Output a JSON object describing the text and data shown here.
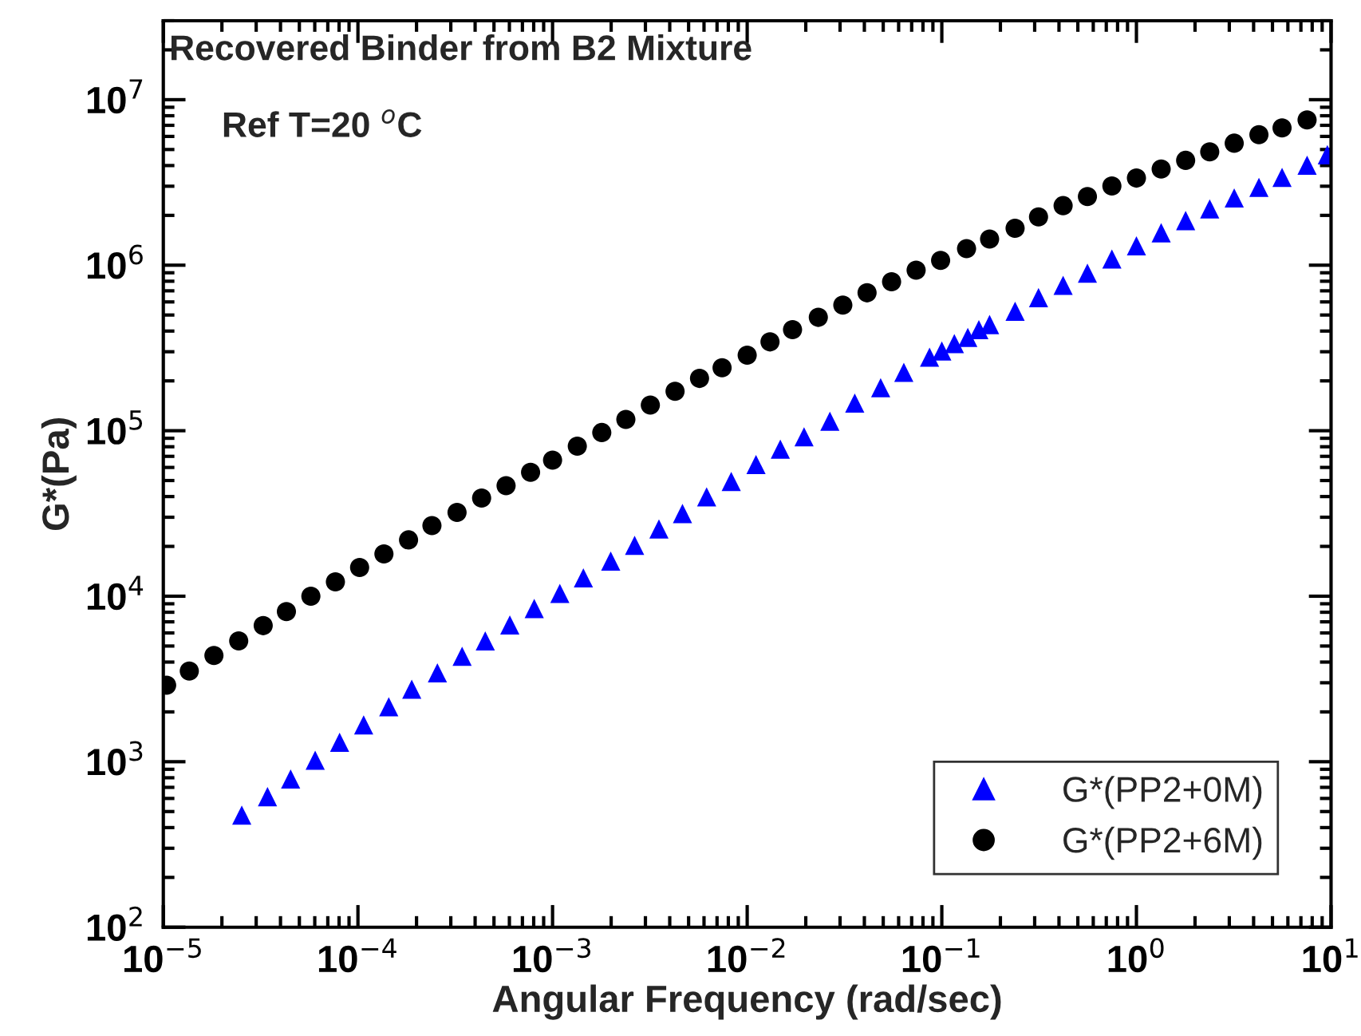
{
  "chart_data": {
    "type": "scatter",
    "xlabel": "Angular Frequency (rad/sec)",
    "ylabel": "G*(Pa)",
    "annotations": [
      "Recovered Binder from B2 Mixture",
      "Ref T=20 $^{o}$C"
    ],
    "log": "xy",
    "grid": false,
    "legend": "bottom right",
    "xlim": [
      1e-05,
      10
    ],
    "ylim": [
      100,
      30000000.0
    ],
    "xticks": [
      {
        "value": 1e-05,
        "label": "10$^{−5}$"
      },
      {
        "value": 0.0001,
        "label": "10$^{−4}$"
      },
      {
        "value": 0.001,
        "label": "10$^{−3}$"
      },
      {
        "value": 0.01,
        "label": "10$^{−2}$"
      },
      {
        "value": 0.1,
        "label": "10$^{−1}$"
      },
      {
        "value": 1,
        "label": "10$^{0}$"
      },
      {
        "value": 10,
        "label": "10$^{1}$"
      }
    ],
    "yticks": [
      {
        "value": 100,
        "label": "10$^{2}$"
      },
      {
        "value": 1000,
        "label": "10$^{3}$"
      },
      {
        "value": 10000,
        "label": "10$^{4}$"
      },
      {
        "value": 100000,
        "label": "10$^{5}$"
      },
      {
        "value": 1000000,
        "label": "10$^{6}$"
      },
      {
        "value": 10000000,
        "label": "10$^{7}$"
      }
    ],
    "series": [
      {
        "name": "G*(PP2+0M)",
        "color": "#0000ff",
        "marker": "triangle",
        "x": [
          2.53e-05,
          3.43e-05,
          4.51e-05,
          6.03e-05,
          8.05e-05,
          0.000107,
          0.000144,
          0.000189,
          0.000256,
          0.000343,
          0.000451,
          0.000603,
          0.000805,
          0.00109,
          0.00144,
          0.00199,
          0.00264,
          0.00352,
          0.00465,
          0.00619,
          0.00828,
          0.0111,
          0.0148,
          0.0196,
          0.0266,
          0.0357,
          0.0485,
          0.0638,
          0.0865,
          0.1,
          0.116,
          0.136,
          0.155,
          0.176,
          0.238,
          0.314,
          0.42,
          0.56,
          0.748,
          1.0,
          1.34,
          1.79,
          2.38,
          3.18,
          4.26,
          5.6,
          7.53,
          9.57
        ],
        "values": [
          476,
          615,
          787,
          1020,
          1310,
          1670,
          2150,
          2740,
          3440,
          4340,
          5370,
          6700,
          8430,
          10400,
          12900,
          16300,
          20300,
          25500,
          31600,
          39800,
          49300,
          62500,
          77400,
          91800,
          114000,
          147000,
          182000,
          225000,
          278000,
          303000,
          336000,
          366000,
          408000,
          438000,
          527000,
          637000,
          755000,
          895000,
          1090000,
          1310000,
          1570000,
          1860000,
          2190000,
          2550000,
          2950000,
          3390000,
          4020000,
          4650000
        ]
      },
      {
        "name": "G*(PP2+6M)",
        "color": "#000000",
        "marker": "circle",
        "x": [
          1.04e-05,
          1.36e-05,
          1.82e-05,
          2.44e-05,
          3.26e-05,
          4.29e-05,
          5.73e-05,
          7.66e-05,
          0.000102,
          0.000136,
          0.000182,
          0.00024,
          0.000323,
          0.000432,
          0.000577,
          0.000771,
          0.001,
          0.00134,
          0.00179,
          0.00238,
          0.00318,
          0.00426,
          0.00569,
          0.00743,
          0.01,
          0.0131,
          0.0171,
          0.0232,
          0.031,
          0.0413,
          0.0552,
          0.0738,
          0.0986,
          0.134,
          0.176,
          0.238,
          0.314,
          0.42,
          0.56,
          0.748,
          1.0,
          1.34,
          1.79,
          2.38,
          3.18,
          4.26,
          5.6,
          7.53
        ],
        "values": [
          2900,
          3530,
          4380,
          5370,
          6640,
          8070,
          10000,
          12200,
          14900,
          18000,
          21900,
          26700,
          32100,
          39200,
          46500,
          56000,
          66400,
          80700,
          97500,
          117000,
          143000,
          173000,
          207000,
          240000,
          286000,
          344000,
          408000,
          484000,
          574000,
          681000,
          794000,
          933000,
          1070000,
          1260000,
          1440000,
          1670000,
          1960000,
          2290000,
          2600000,
          3010000,
          3360000,
          3810000,
          4300000,
          4840000,
          5460000,
          6150000,
          6760000,
          7550000
        ]
      }
    ]
  }
}
